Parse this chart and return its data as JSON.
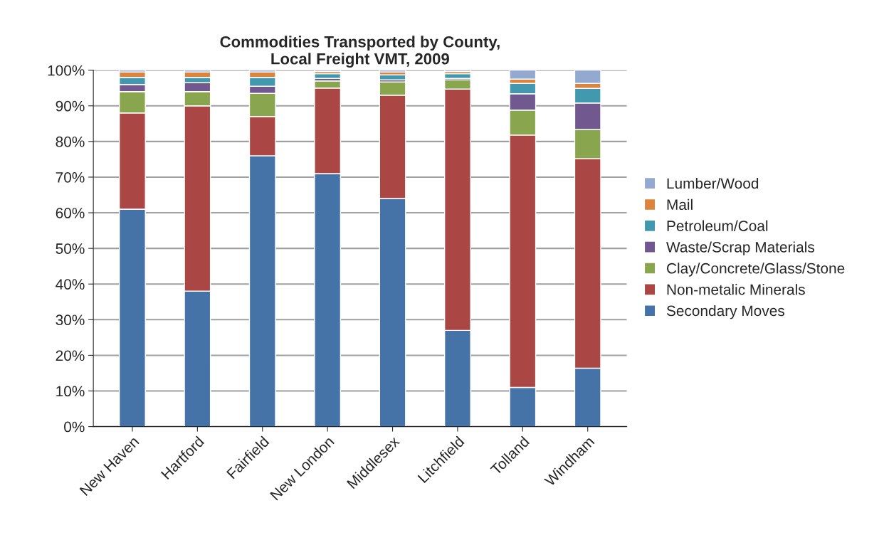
{
  "chart_data": {
    "type": "bar",
    "title": "Commodities Transported by County,\nLocal Freight VMT, 2009",
    "stacked": true,
    "categories": [
      "New Haven",
      "Hartford",
      "Fairfield",
      "New London",
      "Middlesex",
      "Litchfield",
      "Tolland",
      "Windham"
    ],
    "series": [
      {
        "name": "Secondary Moves",
        "color": "#4572a7",
        "values": [
          61,
          38,
          76,
          71,
          64,
          27,
          11,
          16.4
        ]
      },
      {
        "name": "Non-metalic Minerals",
        "color": "#aa4643",
        "values": [
          27,
          52,
          11,
          24,
          29,
          67.7,
          70.8,
          58.8
        ]
      },
      {
        "name": "Clay/Concrete/Glass/Stone",
        "color": "#89a54e",
        "values": [
          6,
          4,
          6.5,
          2,
          3.7,
          2.6,
          7,
          8.2
        ]
      },
      {
        "name": "Waste/Scrap Materials",
        "color": "#71588f",
        "values": [
          2,
          2.5,
          2,
          0.7,
          0.6,
          0.4,
          4.6,
          7.4
        ]
      },
      {
        "name": "Petroleum/Coal",
        "color": "#4198af",
        "values": [
          2,
          1.5,
          2.5,
          1.3,
          1.4,
          1.3,
          2.9,
          4.1
        ]
      },
      {
        "name": "Mail",
        "color": "#db843d",
        "values": [
          1.5,
          1.5,
          1.5,
          0.6,
          0.8,
          0.6,
          1.2,
          1.4
        ]
      },
      {
        "name": "Lumber/Wood",
        "color": "#93a9cf",
        "values": [
          0.5,
          0.5,
          0.5,
          0.4,
          0.5,
          0.4,
          2.5,
          3.7
        ]
      }
    ],
    "ylim": [
      0,
      100
    ],
    "yticks": [
      {
        "value": 0,
        "label": "0%"
      },
      {
        "value": 10,
        "label": "10%"
      },
      {
        "value": 20,
        "label": "20%"
      },
      {
        "value": 30,
        "label": "30%"
      },
      {
        "value": 40,
        "label": "40%"
      },
      {
        "value": 50,
        "label": "50%"
      },
      {
        "value": 60,
        "label": "60%"
      },
      {
        "value": 70,
        "label": "70%"
      },
      {
        "value": 80,
        "label": "80%"
      },
      {
        "value": 90,
        "label": "90%"
      },
      {
        "value": 100,
        "label": "100%"
      }
    ],
    "grid": "y",
    "legend": "right"
  }
}
